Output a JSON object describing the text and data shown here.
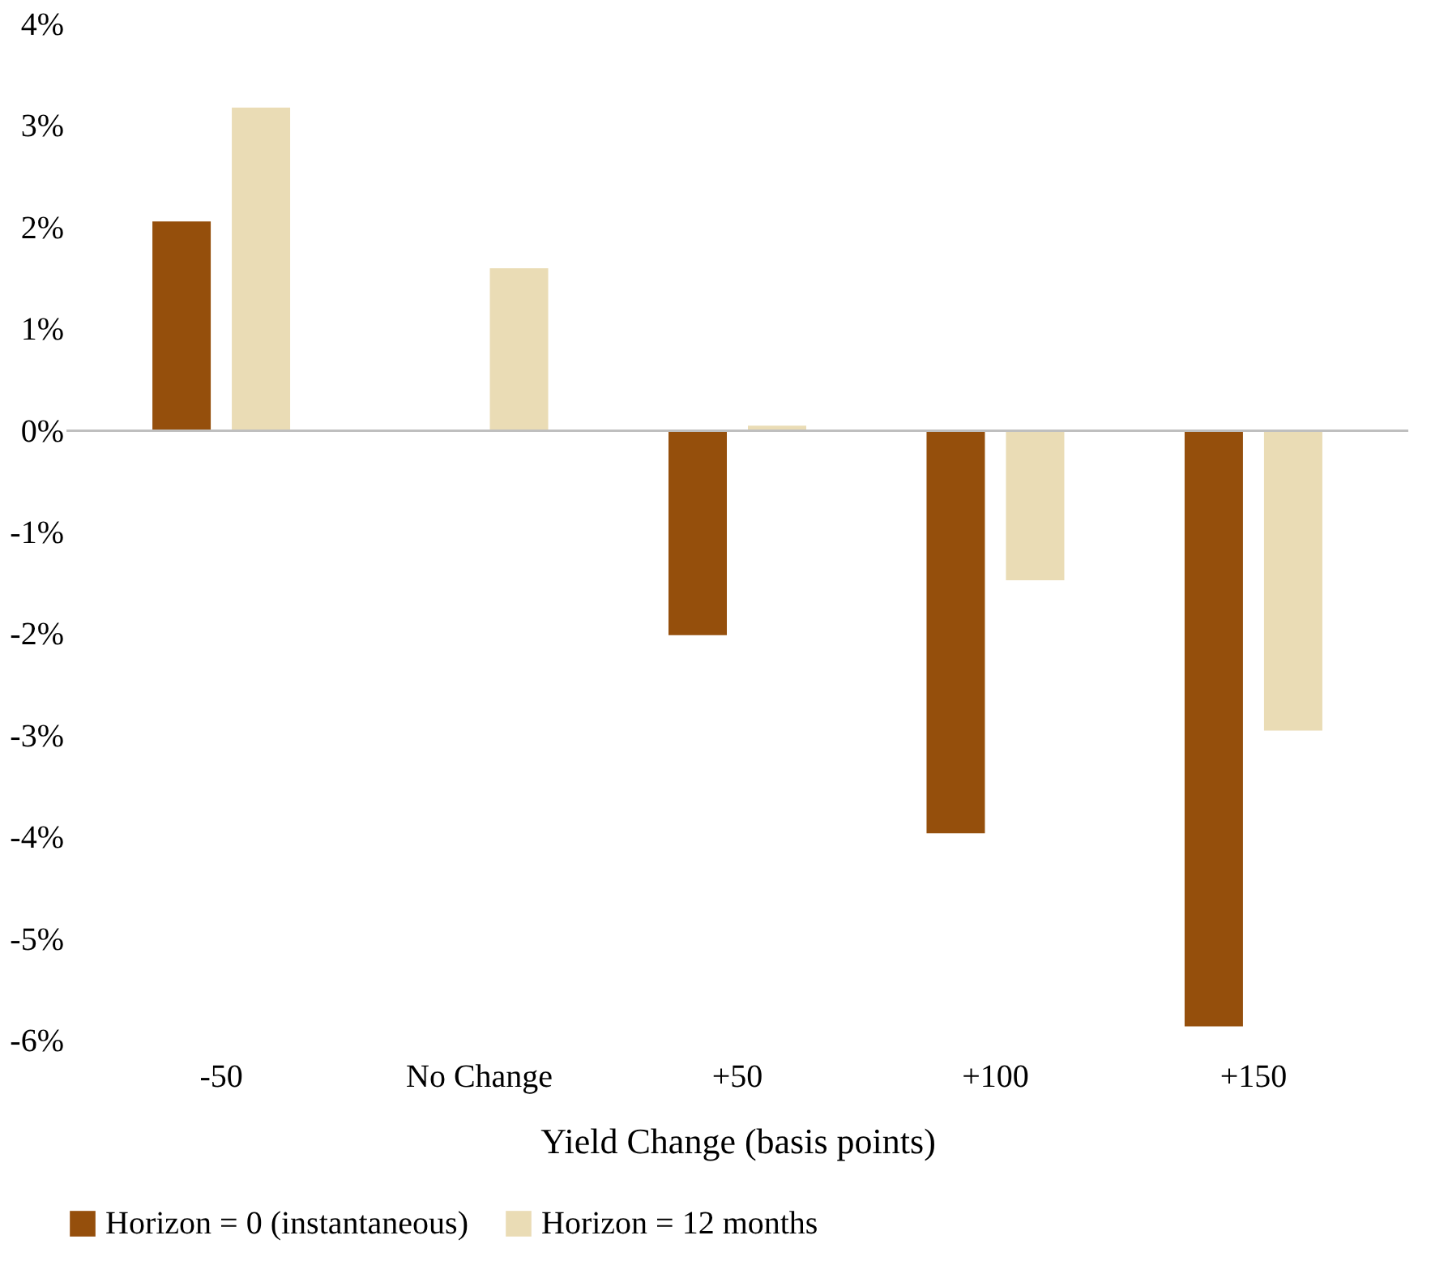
{
  "chart_data": {
    "type": "bar",
    "xlabel": "Yield Change (basis points)",
    "categories": [
      "-50",
      "No Change",
      "+50",
      "+100",
      "+150"
    ],
    "series": [
      {
        "name": "Horizon = 0 (instantaneous)",
        "color": "#954f0c",
        "values": [
          2.06,
          0,
          -2.01,
          -3.96,
          -5.86
        ]
      },
      {
        "name": "Horizon = 12 months",
        "color": "#eadcb5",
        "values": [
          3.18,
          1.6,
          0.05,
          -1.47,
          -2.95
        ]
      }
    ],
    "ylim": [
      -6,
      4
    ],
    "yticks": [
      {
        "value": -6,
        "label": "-6%"
      },
      {
        "value": -5,
        "label": "-5%"
      },
      {
        "value": -4,
        "label": "-4%"
      },
      {
        "value": -3,
        "label": "-3%"
      },
      {
        "value": -2,
        "label": "-2%"
      },
      {
        "value": -1,
        "label": "-1%"
      },
      {
        "value": 0,
        "label": "0%"
      },
      {
        "value": 1,
        "label": "1%"
      },
      {
        "value": 2,
        "label": "2%"
      },
      {
        "value": 3,
        "label": "3%"
      },
      {
        "value": 4,
        "label": "4%"
      }
    ],
    "ref_lines": [
      {
        "axis": "y",
        "value": 0,
        "color": "#bfbfbf"
      }
    ],
    "grid": false,
    "legend": "bottom"
  }
}
